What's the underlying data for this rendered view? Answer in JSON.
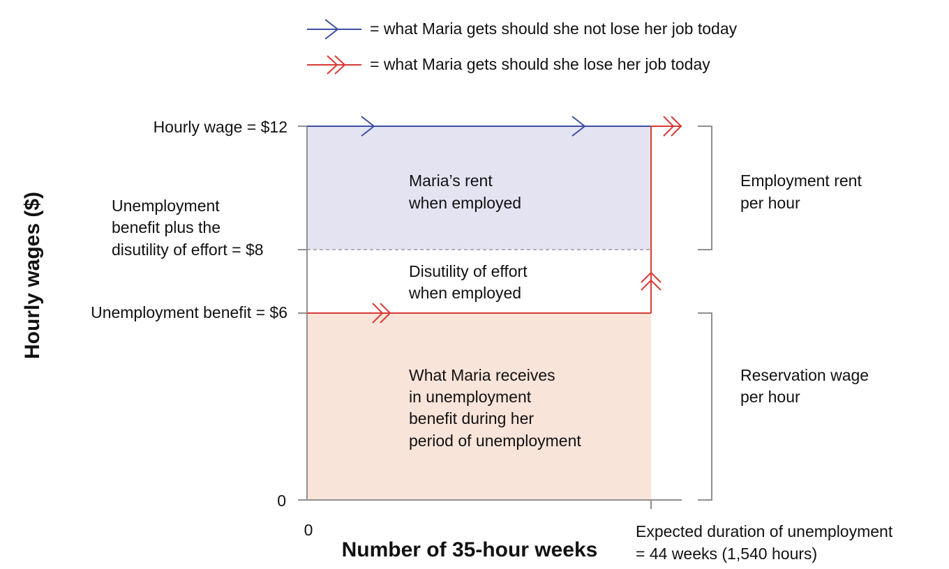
{
  "legend": {
    "employed": "= what Maria gets should she not lose her job today",
    "unemployed": "= what Maria gets should she lose her job today"
  },
  "axes": {
    "y_title": "Hourly wages ($)",
    "x_title": "Number of 35-hour weeks",
    "y_zero": "0",
    "x_zero": "0",
    "y_ticks": {
      "wage": "Hourly wage = $12",
      "reservation": [
        "Unemployment",
        "benefit plus the",
        "disutility of effort = $8"
      ],
      "benefit": "Unemployment benefit = $6"
    },
    "x_tick": [
      "Expected duration of unemployment",
      "= 44 weeks (1,540 hours)"
    ]
  },
  "areas": {
    "rent": [
      "Maria’s rent",
      "when employed"
    ],
    "disutility": [
      "Disutility of effort",
      "when employed"
    ],
    "benefit": [
      "What Maria receives",
      "in unemployment",
      "benefit during her",
      "period of unemployment"
    ]
  },
  "braces": {
    "rent": [
      "Employment rent",
      "per hour"
    ],
    "reservation": [
      "Reservation wage",
      "per hour"
    ]
  },
  "values": {
    "hourly_wage": 12,
    "reservation_wage": 8,
    "unemployment_benefit": 6,
    "unemployment_weeks": 44,
    "unemployment_hours": 1540
  },
  "colors": {
    "employed_line": "#3d4fa3",
    "unemployed_line": "#d93a36",
    "rent_fill": "#e4e3f1",
    "benefit_fill": "#f9e4da",
    "axis": "#8f8f8f"
  }
}
